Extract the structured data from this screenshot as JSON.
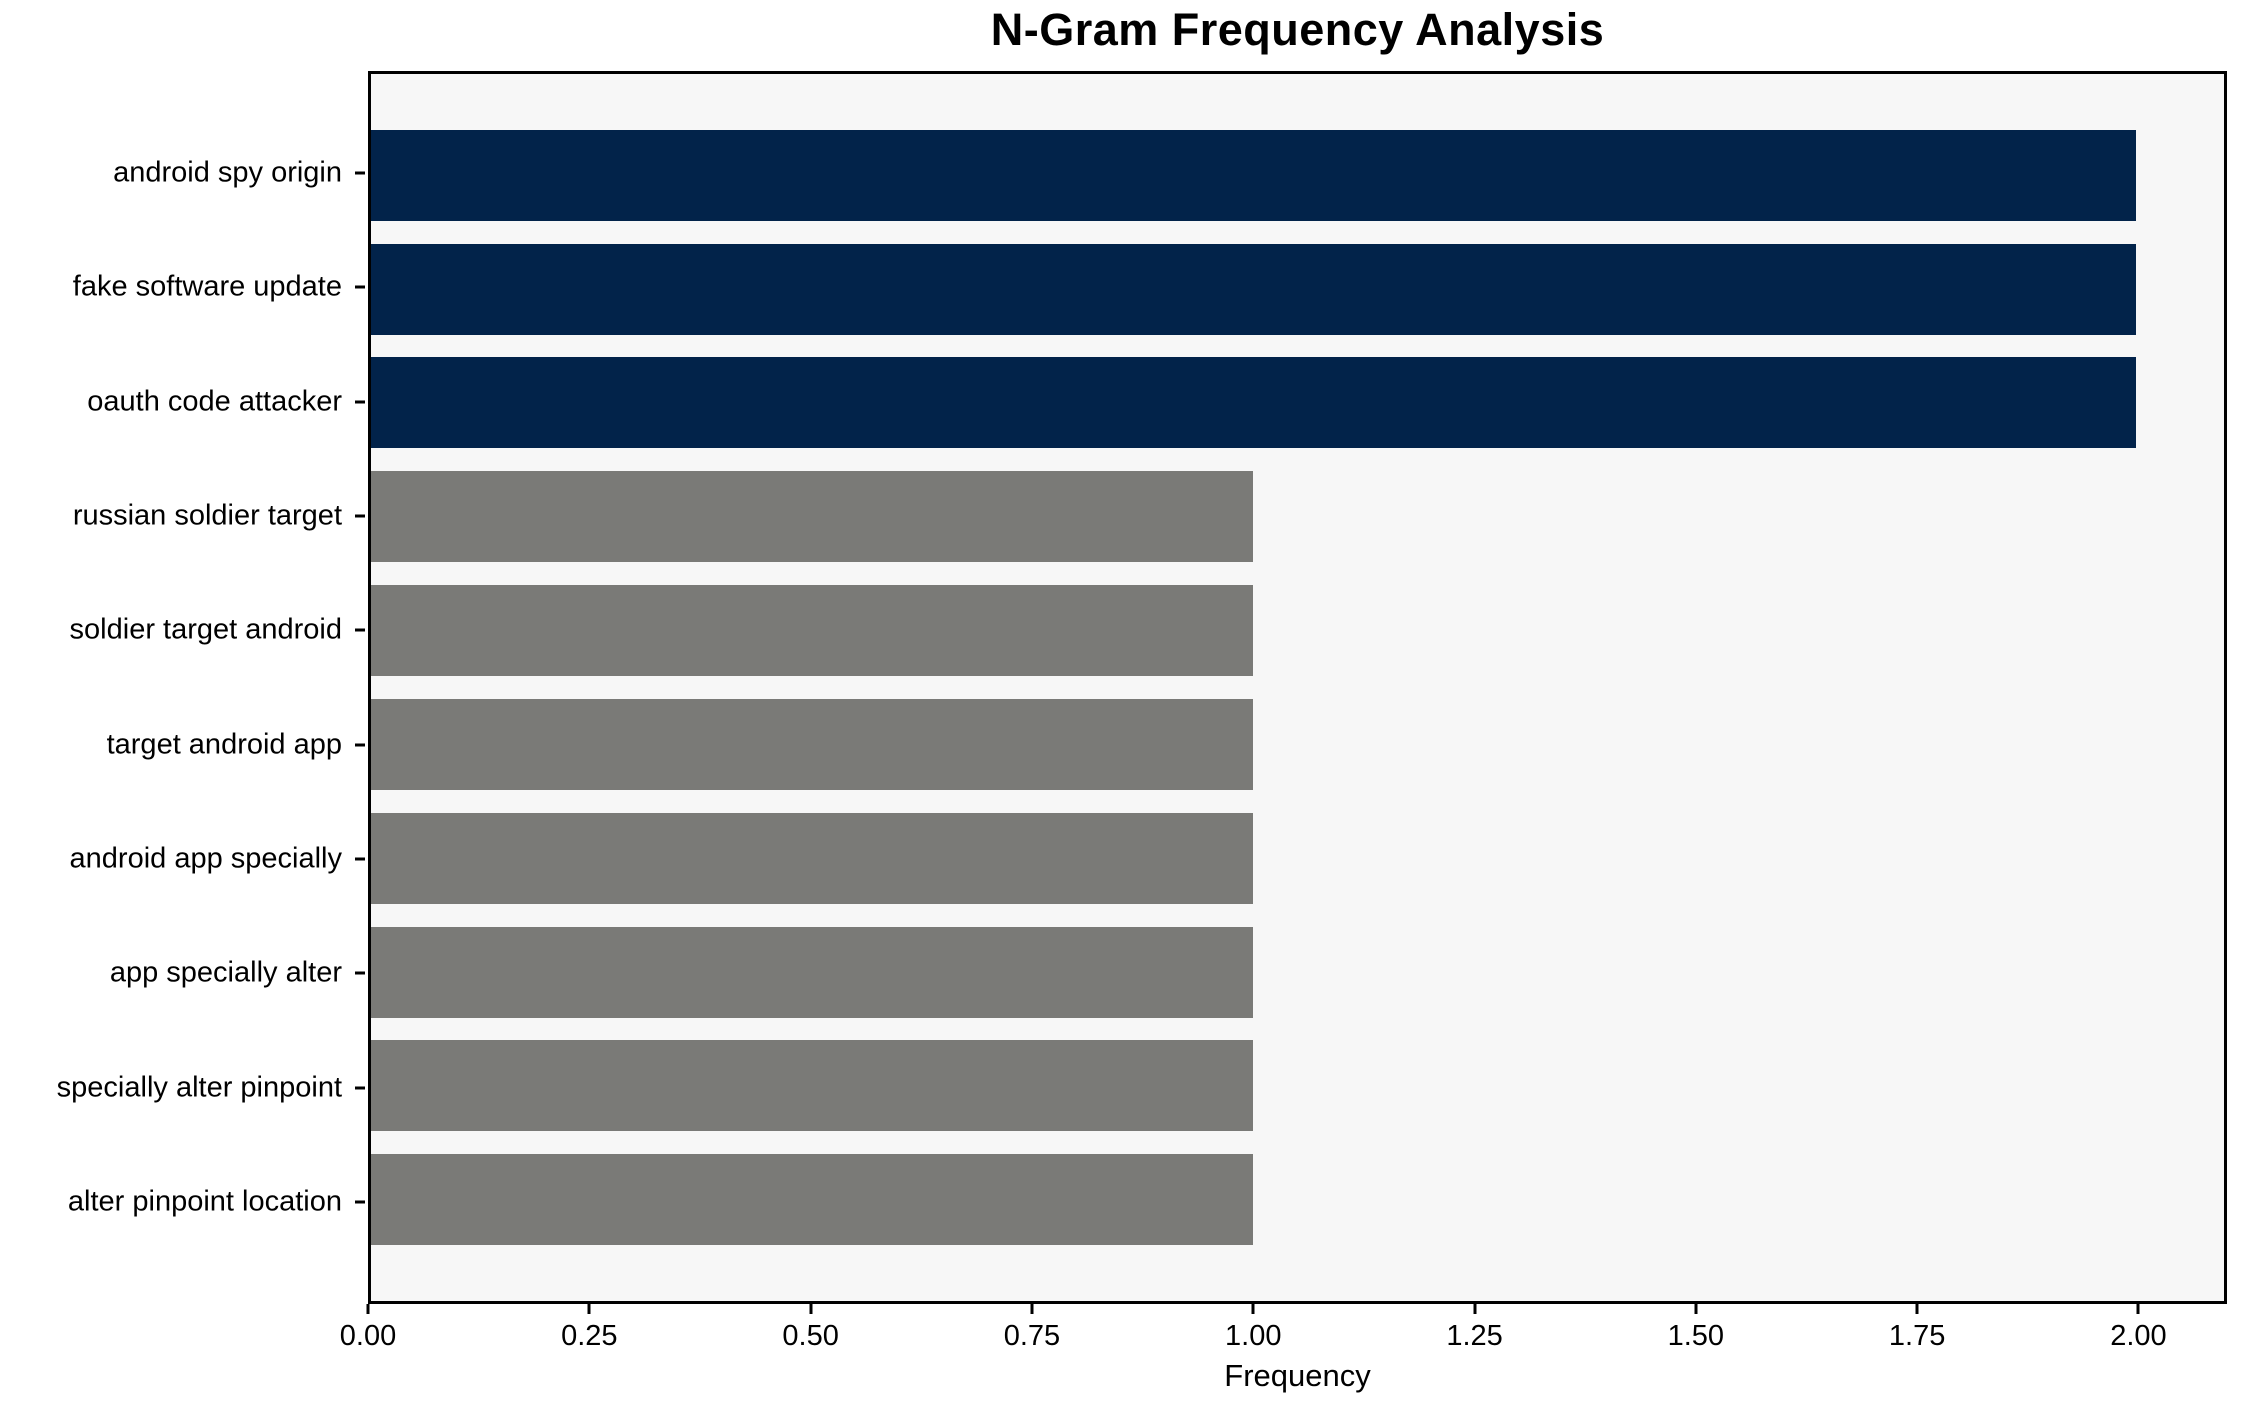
{
  "chart_data": {
    "type": "bar",
    "orientation": "horizontal",
    "title": "N-Gram Frequency Analysis",
    "xlabel": "Frequency",
    "ylabel": "",
    "categories": [
      "android spy origin",
      "fake software update",
      "oauth code attacker",
      "russian soldier target",
      "soldier target android",
      "target android app",
      "android app specially",
      "app specially alter",
      "specially alter pinpoint",
      "alter pinpoint location"
    ],
    "values": [
      2,
      2,
      2,
      1,
      1,
      1,
      1,
      1,
      1,
      1
    ],
    "bar_colors": [
      "#02234a",
      "#02234a",
      "#02234a",
      "#7a7a77",
      "#7a7a77",
      "#7a7a77",
      "#7a7a77",
      "#7a7a77",
      "#7a7a77",
      "#7a7a77"
    ],
    "xlim": [
      0,
      2.1
    ],
    "xticks": [
      {
        "value": 0.0,
        "label": "0.00"
      },
      {
        "value": 0.25,
        "label": "0.25"
      },
      {
        "value": 0.5,
        "label": "0.50"
      },
      {
        "value": 0.75,
        "label": "0.75"
      },
      {
        "value": 1.0,
        "label": "1.00"
      },
      {
        "value": 1.25,
        "label": "1.25"
      },
      {
        "value": 1.5,
        "label": "1.50"
      },
      {
        "value": 1.75,
        "label": "1.75"
      },
      {
        "value": 2.0,
        "label": "2.00"
      }
    ],
    "grid": false,
    "legend": "none",
    "colors": {
      "bar_high": "#02234a",
      "bar_low": "#7a7a77",
      "plot_background": "#f7f7f7",
      "figure_background": "#ffffff",
      "axis": "#000000",
      "text": "#000000"
    }
  }
}
